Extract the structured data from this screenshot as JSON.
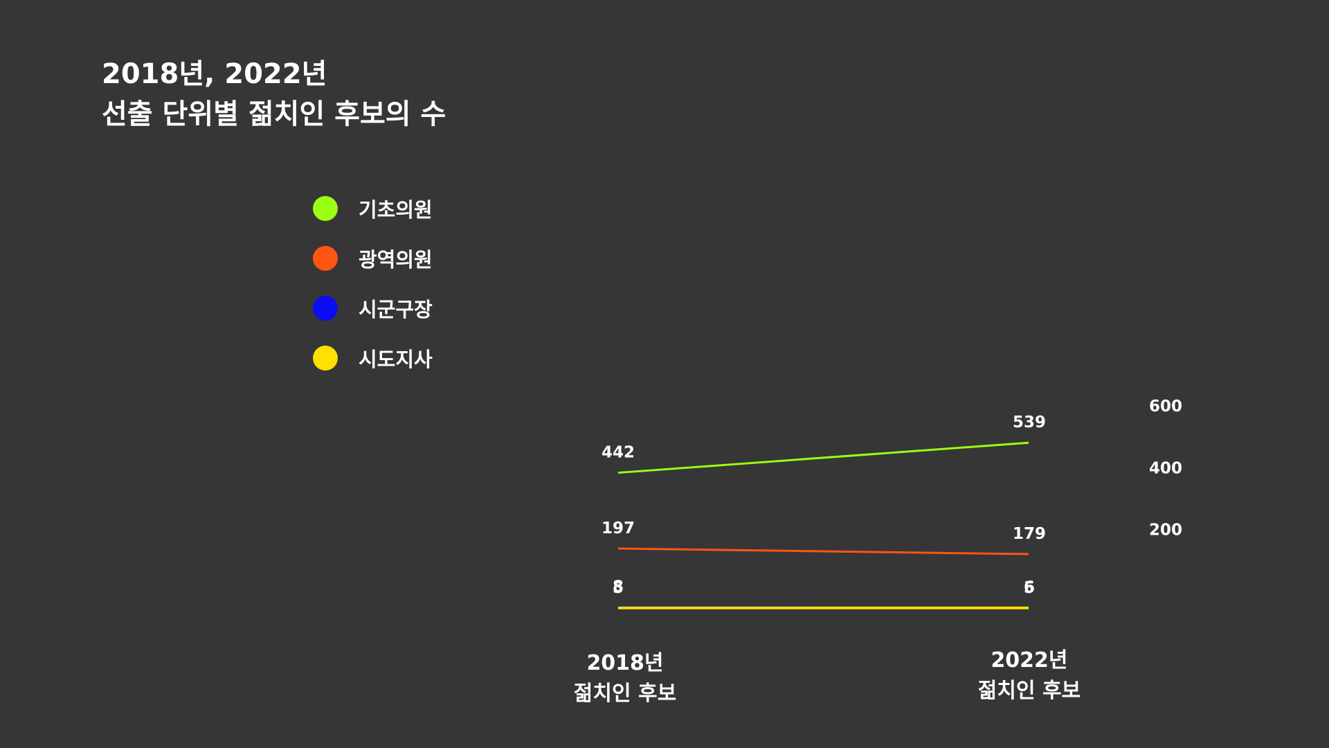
{
  "title": {
    "line1": "2018년, 2022년",
    "line2": "선출 단위별 젊치인 후보의 수"
  },
  "legend": [
    {
      "label": "기초의원",
      "color": "#9aff13"
    },
    {
      "label": "광역의원",
      "color": "#ff5512"
    },
    {
      "label": "시군구장",
      "color": "#0b0bf4"
    },
    {
      "label": "시도지사",
      "color": "#ffe000"
    }
  ],
  "x_labels": [
    {
      "line1": "2018년",
      "line2": "젊치인 후보"
    },
    {
      "line1": "2022년",
      "line2": "젊치인 후보"
    }
  ],
  "chart_data": {
    "type": "line",
    "categories": [
      "2018년 젊치인 후보",
      "2022년 젊치인 후보"
    ],
    "series": [
      {
        "name": "기초의원",
        "values": [
          442,
          539
        ],
        "color": "#9aff13"
      },
      {
        "name": "광역의원",
        "values": [
          197,
          179
        ],
        "color": "#ff5512"
      },
      {
        "name": "시군구장",
        "values": [
          8,
          6
        ],
        "color": "#0b0bf4"
      },
      {
        "name": "시도지사",
        "values": [
          5,
          5
        ],
        "color": "#ffe000"
      }
    ],
    "y_ticks": [
      200,
      400,
      600
    ],
    "ylim": [
      0,
      600
    ],
    "y_axis_position": "right",
    "grid": false,
    "legend_position": "left"
  }
}
